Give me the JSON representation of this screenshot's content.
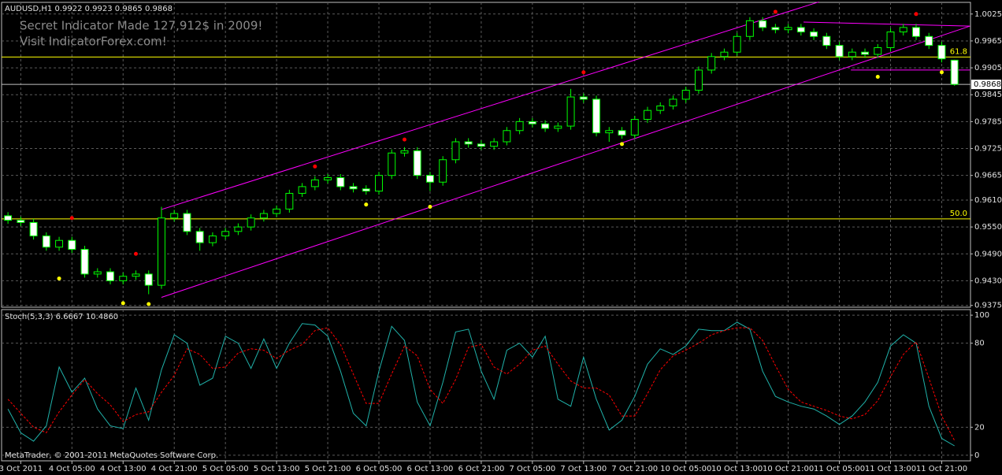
{
  "chart_data": [
    {
      "type": "candlestick",
      "title": "AUDUSD,H1  0.9922 0.9923 0.9865 0.9868",
      "annotations": [
        "Secret Indicator Made 127,912$ in 2009!",
        "Visit IndicatorForex.com!"
      ],
      "open": [
        0.9575,
        0.9565,
        0.956,
        0.953,
        0.9505,
        0.952,
        0.95,
        0.9445,
        0.945,
        0.943,
        0.944,
        0.9445,
        0.942,
        0.957,
        0.958,
        0.954,
        0.9515,
        0.953,
        0.954,
        0.955,
        0.957,
        0.958,
        0.959,
        0.9625,
        0.964,
        0.9655,
        0.966,
        0.964,
        0.9635,
        0.963,
        0.9665,
        0.9715,
        0.972,
        0.9665,
        0.965,
        0.97,
        0.974,
        0.9735,
        0.973,
        0.974,
        0.9765,
        0.9785,
        0.978,
        0.977,
        0.9775,
        0.984,
        0.9835,
        0.976,
        0.9765,
        0.9755,
        0.979,
        0.981,
        0.982,
        0.9835,
        0.9855,
        0.99,
        0.993,
        0.994,
        0.9975,
        1.001,
        0.9995,
        0.999,
        0.9995,
        0.9985,
        0.9975,
        0.9955,
        0.993,
        0.994,
        0.9935,
        0.995,
        0.9985,
        0.9995,
        0.9975,
        0.9955,
        0.9922
      ],
      "high": [
        0.9583,
        0.9573,
        0.9568,
        0.9538,
        0.9528,
        0.9528,
        0.9508,
        0.9458,
        0.9458,
        0.9448,
        0.9453,
        0.9453,
        0.9595,
        0.9588,
        0.9588,
        0.9548,
        0.9538,
        0.9548,
        0.9558,
        0.9578,
        0.9588,
        0.9598,
        0.9633,
        0.9648,
        0.9663,
        0.9668,
        0.9668,
        0.9648,
        0.9643,
        0.9673,
        0.9723,
        0.9728,
        0.9728,
        0.9673,
        0.9708,
        0.9748,
        0.9748,
        0.9743,
        0.9748,
        0.9773,
        0.9793,
        0.9793,
        0.9788,
        0.9783,
        0.9858,
        0.9848,
        0.9843,
        0.9773,
        0.9773,
        0.9798,
        0.9818,
        0.9828,
        0.9843,
        0.9863,
        0.9908,
        0.9938,
        0.9948,
        0.9983,
        1.0018,
        1.0018,
        1.0003,
        1.0003,
        1.0003,
        0.9993,
        0.9983,
        0.9963,
        0.9948,
        0.9948,
        0.9958,
        0.9993,
        1.0003,
        1.0003,
        0.9983,
        0.9963,
        0.9923
      ],
      "low": [
        0.9557,
        0.9552,
        0.9522,
        0.9497,
        0.9497,
        0.9492,
        0.9437,
        0.9437,
        0.9422,
        0.9422,
        0.9432,
        0.94,
        0.9412,
        0.9562,
        0.9532,
        0.9497,
        0.9507,
        0.9522,
        0.9532,
        0.9542,
        0.9562,
        0.9572,
        0.9582,
        0.9617,
        0.9632,
        0.9647,
        0.9632,
        0.9627,
        0.9622,
        0.9622,
        0.9657,
        0.9707,
        0.9657,
        0.963,
        0.9642,
        0.9692,
        0.9727,
        0.9722,
        0.9722,
        0.9732,
        0.9757,
        0.9772,
        0.9762,
        0.9762,
        0.9767,
        0.9827,
        0.9752,
        0.974,
        0.9747,
        0.9747,
        0.9782,
        0.9802,
        0.9812,
        0.9827,
        0.9847,
        0.9892,
        0.9922,
        0.9932,
        0.9967,
        0.9987,
        0.9982,
        0.9982,
        0.9977,
        0.9967,
        0.9947,
        0.9922,
        0.9922,
        0.9927,
        0.9927,
        0.9942,
        0.9977,
        0.9967,
        0.9947,
        0.9917,
        0.9865
      ],
      "close": [
        0.9565,
        0.956,
        0.953,
        0.9505,
        0.952,
        0.95,
        0.9445,
        0.945,
        0.943,
        0.944,
        0.9445,
        0.942,
        0.957,
        0.958,
        0.954,
        0.9515,
        0.953,
        0.954,
        0.955,
        0.957,
        0.958,
        0.959,
        0.9625,
        0.964,
        0.9655,
        0.966,
        0.964,
        0.9635,
        0.963,
        0.9665,
        0.9715,
        0.972,
        0.9665,
        0.965,
        0.97,
        0.974,
        0.9735,
        0.973,
        0.974,
        0.9765,
        0.9785,
        0.978,
        0.977,
        0.9775,
        0.984,
        0.9835,
        0.976,
        0.9765,
        0.9755,
        0.979,
        0.981,
        0.982,
        0.9835,
        0.9855,
        0.99,
        0.993,
        0.994,
        0.9975,
        1.001,
        0.9995,
        0.999,
        0.9995,
        0.9985,
        0.9975,
        0.9955,
        0.993,
        0.994,
        0.9935,
        0.995,
        0.9985,
        0.9995,
        0.9975,
        0.9955,
        0.9925,
        0.9868
      ],
      "up_color": "#000000",
      "down_color": "#ffffff",
      "wick_color": "#00ff00",
      "xlim": [
        -0.5,
        75.25
      ],
      "ylim": [
        0.9371,
        1.0051
      ],
      "yticks": [
        1.0025,
        0.9965,
        0.9905,
        0.9845,
        0.9785,
        0.9725,
        0.9665,
        {
          "value": 0.961,
          "label": "0.9610"
        },
        {
          "value": 0.955,
          "label": "0.9550"
        },
        {
          "value": 0.949,
          "label": "0.9490"
        },
        {
          "value": 0.943,
          "label": "0.9430"
        },
        0.9375
      ],
      "grid": true,
      "markers": [
        {
          "color": "#ff0000",
          "x": [
            5,
            10,
            24,
            31,
            45,
            60,
            71
          ],
          "values": [
            0.957,
            0.949,
            0.9685,
            0.9745,
            0.9895,
            1.003,
            1.0025
          ]
        },
        {
          "color": "#ffff00",
          "x": [
            4,
            9,
            11,
            28,
            33,
            48,
            68,
            73
          ],
          "values": [
            0.9435,
            0.938,
            0.9378,
            0.96,
            0.9595,
            0.9735,
            0.9885,
            0.9895
          ]
        }
      ],
      "trendlines": [
        {
          "color": "#ff00ff",
          "x": [
            12,
            63.4
          ],
          "values": [
            0.9589,
            1.0052
          ]
        },
        {
          "color": "#ff00ff",
          "x": [
            12,
            75.2
          ],
          "values": [
            0.9393,
            0.9998
          ]
        },
        {
          "color": "#ff00ff",
          "x": [
            62.2,
            75.2
          ],
          "values": [
            1.0007,
            0.9998
          ]
        },
        {
          "color": "#ff00ff",
          "x": [
            65.9,
            75.2
          ],
          "values": [
            0.99,
            0.99
          ]
        }
      ],
      "levels": [
        {
          "label": "61.8",
          "value": 0.9929,
          "color": "#ffff00"
        },
        {
          "label": "50.0",
          "value": 0.9568,
          "color": "#ffff00"
        }
      ],
      "price_line": 0.9868
    },
    {
      "type": "line",
      "title": "Stoch(5,3,3) 6.6667 10.4860",
      "footer": "MetaTrader, © 2001-2011 MetaQuotes Software Corp.",
      "series": [
        {
          "name": "Main",
          "color": "#20b2aa",
          "values": [
            33,
            16,
            10,
            21,
            63,
            45,
            55,
            33,
            21,
            19,
            48,
            25,
            61,
            86,
            80,
            50,
            55,
            85,
            80,
            62,
            83,
            62,
            80,
            94,
            93,
            85,
            60,
            30,
            21,
            60,
            92,
            82,
            38,
            21,
            52,
            88,
            90,
            60,
            40,
            75,
            80,
            70,
            85,
            40,
            35,
            70,
            40,
            18,
            25,
            42,
            65,
            76,
            72,
            78,
            90,
            89,
            89,
            95,
            90,
            60,
            42,
            38,
            35,
            33,
            28,
            22,
            28,
            38,
            52,
            78,
            86,
            80,
            35,
            12,
            6.6667
          ]
        },
        {
          "name": "Signal",
          "color": "#ff0000",
          "dashed": true,
          "values": [
            40,
            30,
            20,
            16,
            31,
            43,
            54,
            44,
            36,
            24,
            29,
            31,
            45,
            57,
            76,
            72,
            62,
            63,
            73,
            76,
            75,
            69,
            75,
            79,
            89,
            91,
            79,
            58,
            37,
            37,
            58,
            78,
            71,
            47,
            37,
            54,
            77,
            79,
            63,
            58,
            65,
            75,
            78,
            65,
            53,
            48,
            48,
            43,
            28,
            28,
            44,
            61,
            71,
            75,
            80,
            86,
            89,
            91,
            91,
            82,
            64,
            47,
            38,
            35,
            32,
            28,
            26,
            29,
            39,
            56,
            72,
            81,
            55,
            28,
            10.486
          ]
        }
      ],
      "xlim": [
        -0.5,
        75.25
      ],
      "ylim": [
        -4,
        104
      ],
      "yticks": [
        100,
        80,
        20,
        0
      ],
      "grid": true,
      "xticks": [
        {
          "value": 1,
          "label": "3 Oct 2011"
        },
        {
          "value": 5,
          "label": "4 Oct 05:00"
        },
        {
          "value": 9,
          "label": "4 Oct 13:00"
        },
        {
          "value": 13,
          "label": "4 Oct 21:00"
        },
        {
          "value": 17,
          "label": "5 Oct 05:00"
        },
        {
          "value": 21,
          "label": "5 Oct 13:00"
        },
        {
          "value": 25,
          "label": "5 Oct 21:00"
        },
        {
          "value": 29,
          "label": "6 Oct 05:00"
        },
        {
          "value": 33,
          "label": "6 Oct 13:00"
        },
        {
          "value": 37,
          "label": "6 Oct 21:00"
        },
        {
          "value": 41,
          "label": "7 Oct 05:00"
        },
        {
          "value": 45,
          "label": "7 Oct 13:00"
        },
        {
          "value": 49,
          "label": "7 Oct 21:00"
        },
        {
          "value": 53,
          "label": "10 Oct 05:00"
        },
        {
          "value": 57,
          "label": "10 Oct 13:00"
        },
        {
          "value": 61,
          "label": "10 Oct 21:00"
        },
        {
          "value": 65,
          "label": "11 Oct 05:00"
        },
        {
          "value": 69,
          "label": "11 Oct 13:00"
        },
        {
          "value": 73,
          "label": "11 Oct 21:00"
        }
      ]
    }
  ]
}
